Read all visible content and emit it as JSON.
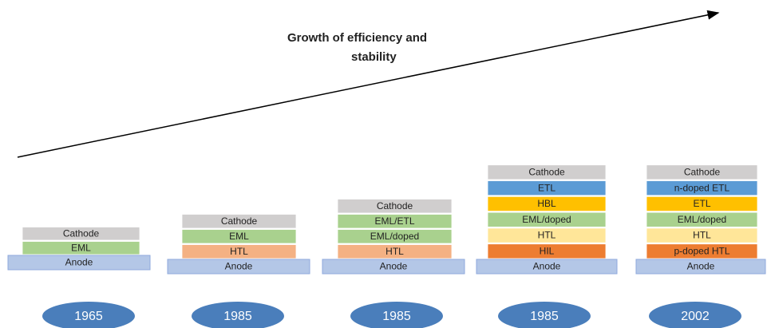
{
  "title_lines": [
    "Growth of efficiency and",
    "stability"
  ],
  "stacks": [
    {
      "year": "1965",
      "anode": "Anode",
      "layers": [
        {
          "name": "EML",
          "color": "#a9d18e"
        },
        {
          "name": "Cathode",
          "color": "#d0cece"
        }
      ]
    },
    {
      "year": "1985",
      "anode": "Anode",
      "layers": [
        {
          "name": "HTL",
          "color": "#f4b183"
        },
        {
          "name": "EML",
          "color": "#a9d18e"
        },
        {
          "name": "Cathode",
          "color": "#d0cece"
        }
      ]
    },
    {
      "year": "1985",
      "anode": "Anode",
      "layers": [
        {
          "name": "HTL",
          "color": "#f4b183"
        },
        {
          "name": "EML/doped",
          "color": "#a9d18e"
        },
        {
          "name": "EML/ETL",
          "color": "#a9d18e"
        },
        {
          "name": "Cathode",
          "color": "#d0cece"
        }
      ]
    },
    {
      "year": "1985",
      "anode": "Anode",
      "layers": [
        {
          "name": "HIL",
          "color": "#ed7d31"
        },
        {
          "name": "HTL",
          "color": "#ffe699"
        },
        {
          "name": "EML/doped",
          "color": "#a9d18e"
        },
        {
          "name": "HBL",
          "color": "#ffc000"
        },
        {
          "name": "ETL",
          "color": "#5b9bd5"
        },
        {
          "name": "Cathode",
          "color": "#d0cece"
        }
      ]
    },
    {
      "year": "2002",
      "anode": "Anode",
      "layers": [
        {
          "name": "p-doped HTL",
          "color": "#ed7d31"
        },
        {
          "name": "HTL",
          "color": "#ffe699"
        },
        {
          "name": "EML/doped",
          "color": "#a9d18e"
        },
        {
          "name": "ETL",
          "color": "#ffc000"
        },
        {
          "name": "n-doped ETL",
          "color": "#5b9bd5"
        },
        {
          "name": "Cathode",
          "color": "#d0cece"
        }
      ]
    }
  ]
}
